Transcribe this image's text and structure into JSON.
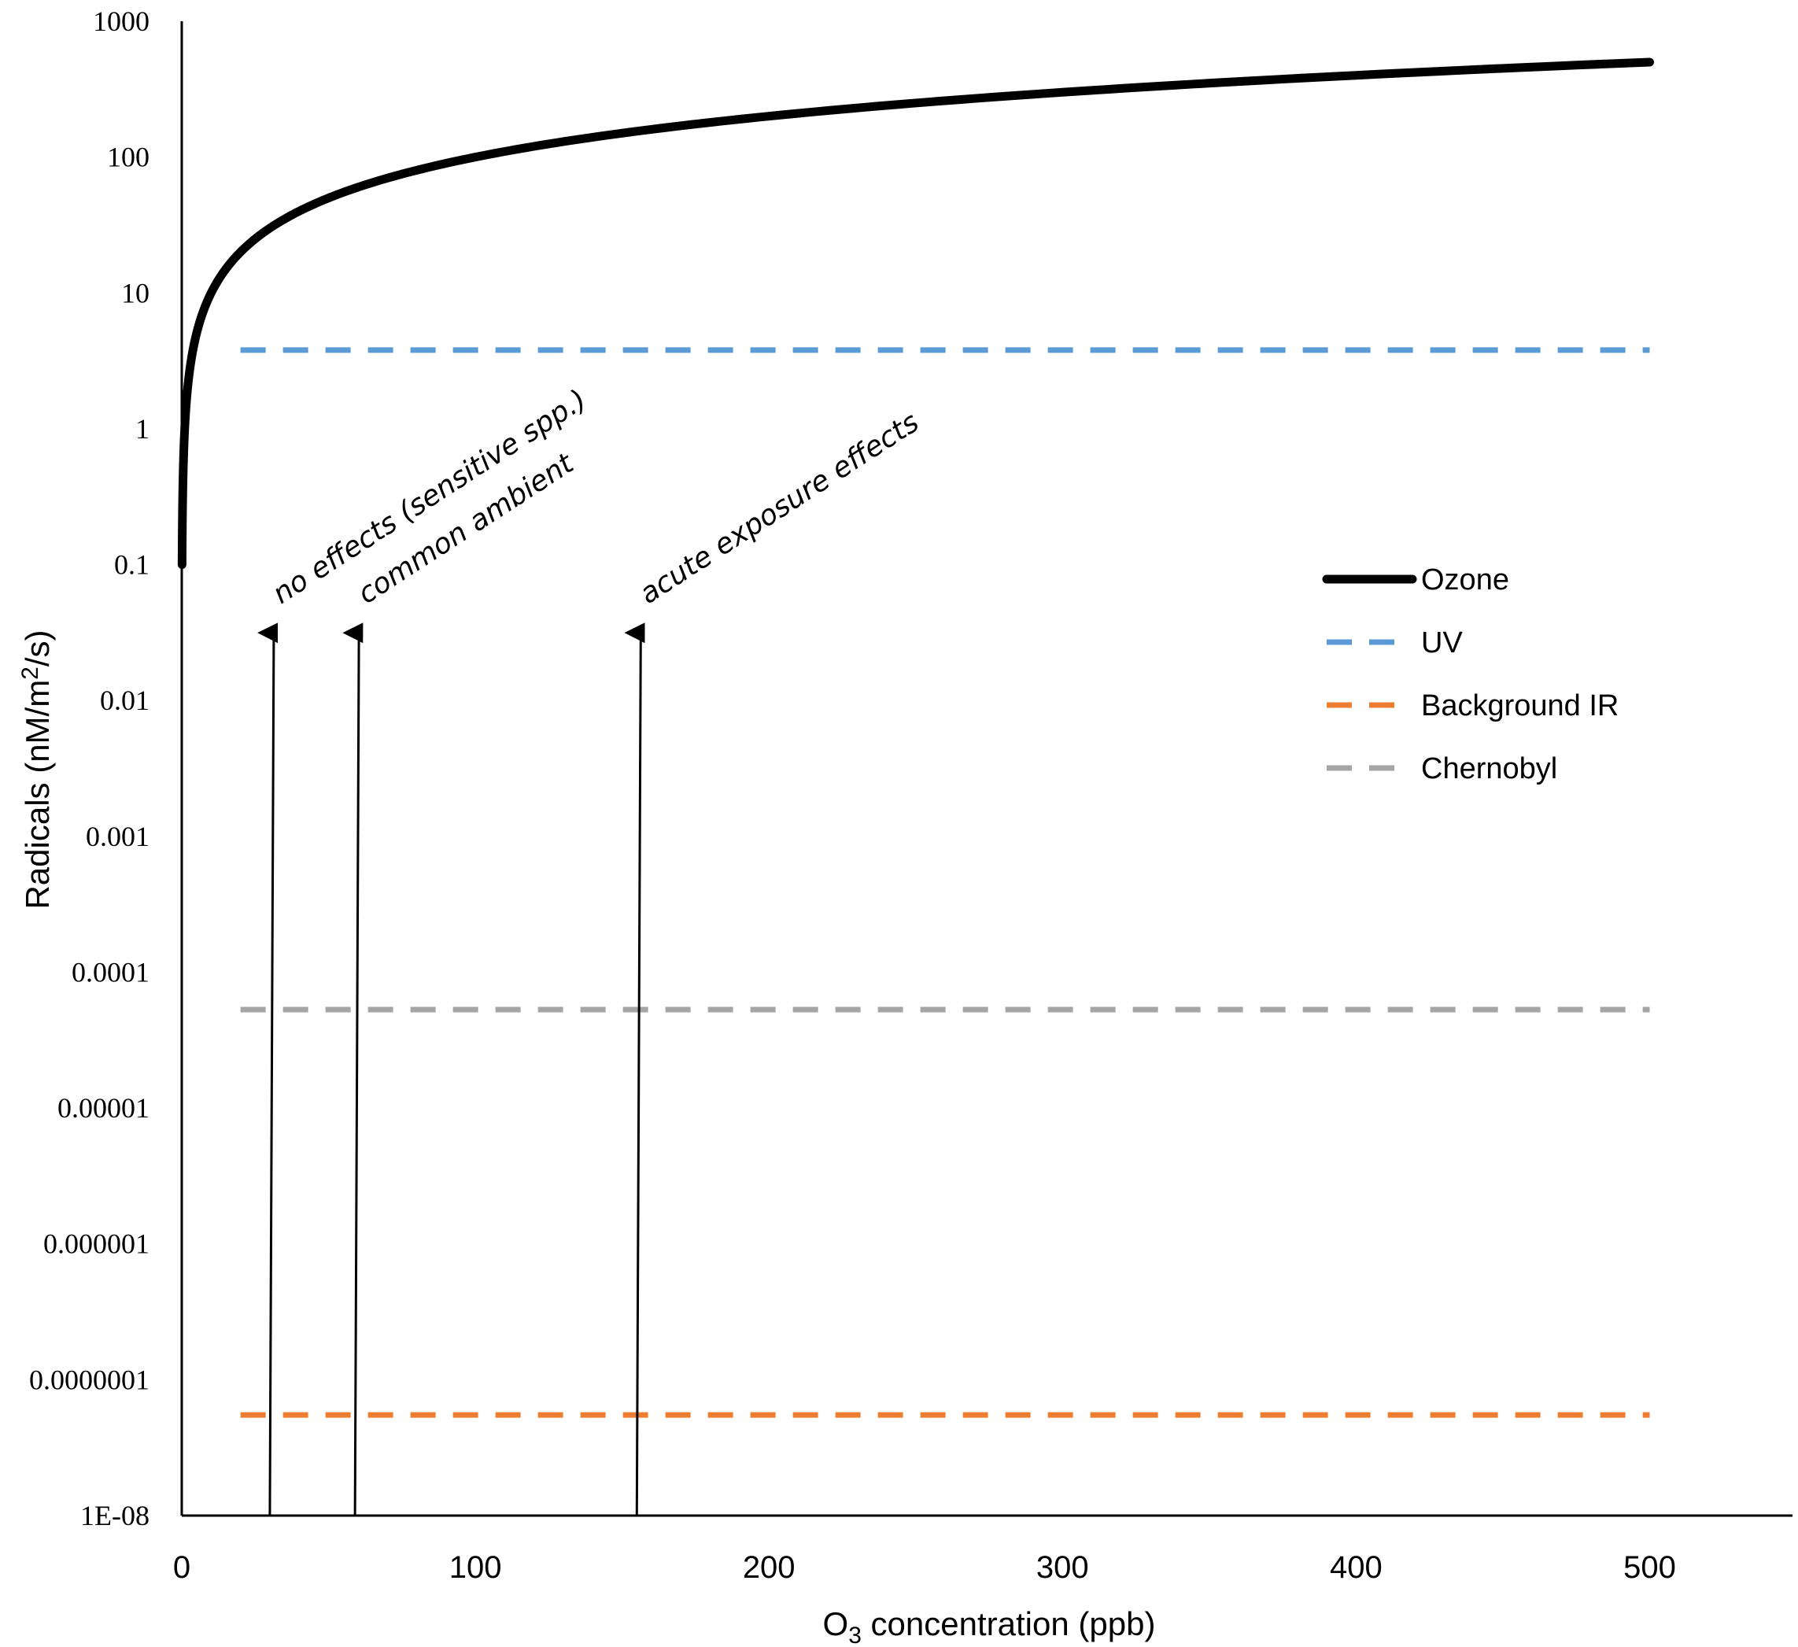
{
  "chart_data": {
    "type": "line",
    "title": "",
    "xlabel": {
      "main": "O",
      "sub": "3",
      "rest": " concentration (ppb)"
    },
    "ylabel": {
      "main": "Radicals (nM/m",
      "sup": "2",
      "rest": "/s)"
    },
    "xlim": [
      0,
      550
    ],
    "ylim": [
      1e-08,
      1000
    ],
    "yscale": "log",
    "x_ticks": [
      0,
      100,
      200,
      300,
      400,
      500
    ],
    "x_tick_labels": [
      "0",
      "100",
      "200",
      "300",
      "400",
      "500"
    ],
    "y_ticks": [
      1e-08,
      1e-07,
      1e-06,
      1e-05,
      0.0001,
      0.001,
      0.01,
      0.1,
      1,
      10,
      100,
      1000
    ],
    "y_tick_labels": [
      "1E-08",
      "0.0000001",
      "0.000001",
      "0.00001",
      "0.0001",
      "0.001",
      "0.01",
      "0.1",
      "1",
      "10",
      "100",
      "1000"
    ],
    "series": [
      {
        "name": "Ozone",
        "color": "#000000",
        "style": "solid",
        "formula": "y = x",
        "x_range": [
          0.1,
          500
        ]
      },
      {
        "name": "UV",
        "color": "#5B9BD5",
        "style": "dashed",
        "value": 3.8,
        "x_range": [
          20,
          500
        ]
      },
      {
        "name": "Background IR",
        "color": "#ED7D31",
        "style": "dashed",
        "value": 5.5e-08,
        "x_range": [
          20,
          500
        ]
      },
      {
        "name": "Chernobyl",
        "color": "#A5A5A5",
        "style": "dashed",
        "value": 5.3e-05,
        "x_range": [
          20,
          500
        ]
      }
    ],
    "annotations": [
      {
        "text": "no effects (sensitive spp.)",
        "x": 30
      },
      {
        "text": "common ambient",
        "x": 59
      },
      {
        "text": "acute exposure effects",
        "x": 155
      }
    ],
    "arrow_tip_y": 0.035,
    "legend_position": "center-right"
  }
}
